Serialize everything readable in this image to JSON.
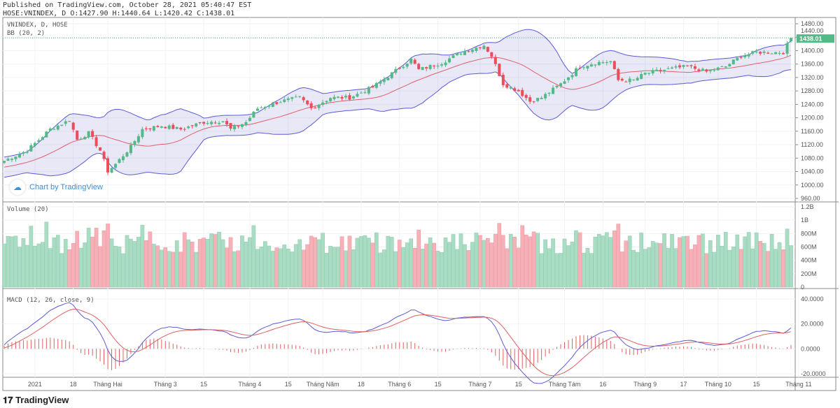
{
  "header": {
    "published": "Published on TradingView.com, October 28, 2021 05:40:47 EST",
    "ohlc": "HOSE:VNINDEX, D O:1427.90 H:1440.64 L:1420.42 C:1438.01"
  },
  "footer": {
    "brand": "TradingView",
    "watermark": "Chart by TradingView"
  },
  "colors": {
    "up": "#53b987",
    "down": "#eb4d5c",
    "vol_up": "#a9dcc3",
    "vol_down": "#f6b0b7",
    "bb_line": "#5b5bd6",
    "bb_fill": "#9898d8",
    "bb_basis": "#e0606a",
    "macd": "#5b5bd6",
    "signal": "#e06060"
  },
  "chart_data": [
    {
      "type": "candlestick",
      "title": "VNINDEX, D, HOSE",
      "indicator": "BB (20, 2)",
      "ylim": [
        960,
        1480
      ],
      "yticks": [
        "1480.00",
        "1440.00",
        "1400.00",
        "1360.00",
        "1320.00",
        "1280.00",
        "1240.00",
        "1200.00",
        "1160.00",
        "1120.00",
        "1080.00",
        "1040.00",
        "1000.00",
        "960.00"
      ],
      "last_price": "1438.01",
      "close_anchors_by_bar": [
        [
          0,
          1072
        ],
        [
          6,
          1103
        ],
        [
          12,
          1166
        ],
        [
          17,
          1193
        ],
        [
          19,
          1135
        ],
        [
          22,
          1155
        ],
        [
          25,
          1103
        ],
        [
          27,
          1041
        ],
        [
          29,
          1062
        ],
        [
          33,
          1114
        ],
        [
          36,
          1166
        ],
        [
          41,
          1176
        ],
        [
          46,
          1166
        ],
        [
          52,
          1187
        ],
        [
          57,
          1191
        ],
        [
          59,
          1166
        ],
        [
          63,
          1187
        ],
        [
          66,
          1228
        ],
        [
          72,
          1249
        ],
        [
          77,
          1260
        ],
        [
          80,
          1228
        ],
        [
          85,
          1260
        ],
        [
          90,
          1260
        ],
        [
          96,
          1291
        ],
        [
          101,
          1332
        ],
        [
          106,
          1374
        ],
        [
          108,
          1343
        ],
        [
          114,
          1364
        ],
        [
          119,
          1395
        ],
        [
          125,
          1416
        ],
        [
          127,
          1384
        ],
        [
          130,
          1301
        ],
        [
          134,
          1280
        ],
        [
          137,
          1249
        ],
        [
          140,
          1260
        ],
        [
          145,
          1301
        ],
        [
          150,
          1353
        ],
        [
          154,
          1364
        ],
        [
          158,
          1368
        ],
        [
          160,
          1312
        ],
        [
          164,
          1312
        ],
        [
          167,
          1332
        ],
        [
          172,
          1343
        ],
        [
          178,
          1353
        ],
        [
          183,
          1337
        ],
        [
          188,
          1353
        ],
        [
          192,
          1384
        ],
        [
          196,
          1395
        ],
        [
          201,
          1395
        ],
        [
          203,
          1395
        ],
        [
          205,
          1438
        ]
      ],
      "xticks": [
        [
          8,
          "2021"
        ],
        [
          18,
          "18"
        ],
        [
          27,
          "Tháng Hai"
        ],
        [
          42,
          "Tháng 3"
        ],
        [
          52,
          "15"
        ],
        [
          64,
          "Tháng 4"
        ],
        [
          74,
          "15"
        ],
        [
          83,
          "Tháng Năm"
        ],
        [
          93,
          "18"
        ],
        [
          103,
          "Tháng 6"
        ],
        [
          113,
          "15"
        ],
        [
          124,
          "Tháng 7"
        ],
        [
          134,
          "15"
        ],
        [
          146,
          "Tháng Tám"
        ],
        [
          156,
          "16"
        ],
        [
          167,
          "Tháng 9"
        ],
        [
          177,
          "17"
        ],
        [
          186,
          "Tháng 10"
        ],
        [
          196,
          "15"
        ],
        [
          207,
          "Tháng 11"
        ]
      ]
    },
    {
      "type": "bar",
      "title": "Volume (20)",
      "ylim": [
        0,
        1200000000
      ],
      "yticks": [
        "1.2B",
        "1B",
        "800M",
        "600M",
        "400M",
        "200M",
        "0"
      ]
    },
    {
      "type": "line",
      "title": "MACD (12, 26, close, 9)",
      "ylim": [
        -22,
        44
      ],
      "yticks": [
        "40.0000",
        "20.0000",
        "0.0000",
        "-20.0000"
      ]
    }
  ]
}
